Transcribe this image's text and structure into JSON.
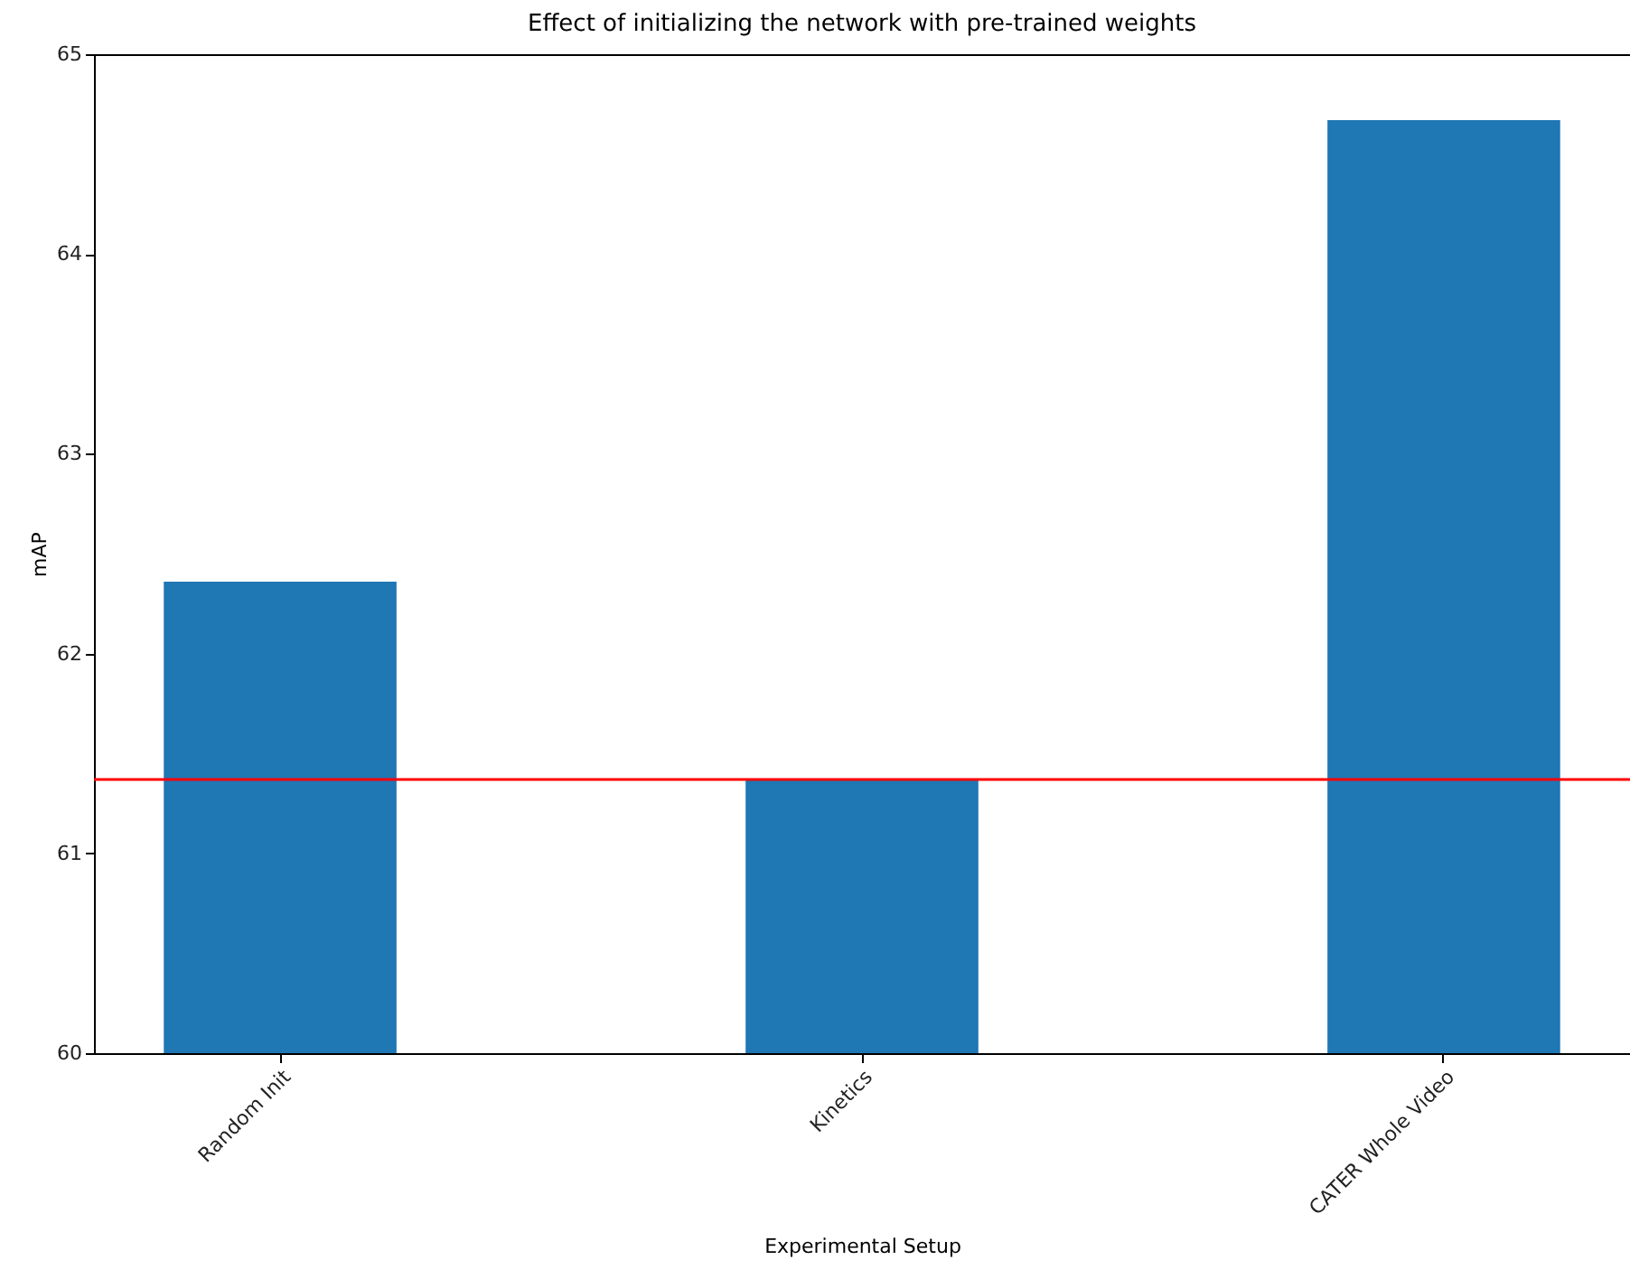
{
  "chart_data": {
    "type": "bar",
    "title": "Effect of initializing the network with pre-trained weights",
    "xlabel": "Experimental Setup",
    "ylabel": "mAP",
    "categories": [
      "Random Init",
      "Kinetics",
      "CATER Whole Video"
    ],
    "values": [
      62.36,
      61.37,
      64.67
    ],
    "color": "#1f77b4",
    "ylim": [
      60,
      65
    ],
    "yticks": [
      60,
      61,
      62,
      63,
      64,
      65
    ],
    "grid": false,
    "ref_lines": [
      {
        "axis": "y",
        "value": 61.37,
        "color": "#ff0000"
      }
    ]
  }
}
